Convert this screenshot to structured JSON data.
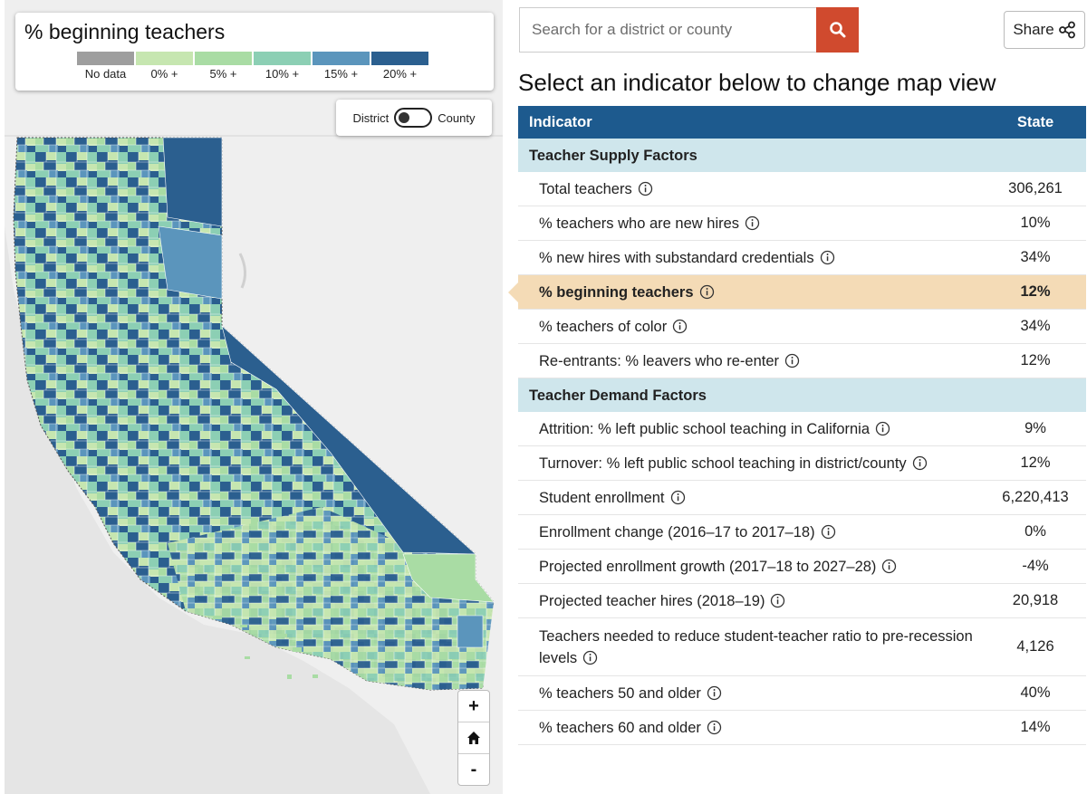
{
  "legend": {
    "title": "% beginning teachers",
    "items": [
      {
        "label": "No data",
        "color": "#9e9e9e"
      },
      {
        "label": "0% +",
        "color": "#c6e6b0"
      },
      {
        "label": "5% +",
        "color": "#a9dca4"
      },
      {
        "label": "10% +",
        "color": "#8ccfb4"
      },
      {
        "label": "15% +",
        "color": "#5b95bc"
      },
      {
        "label": "20% +",
        "color": "#2b5f8f"
      }
    ]
  },
  "toggle": {
    "left_label": "District",
    "right_label": "County",
    "selected": "District"
  },
  "zoom": {
    "zoom_in": "+",
    "home_icon": "home-icon",
    "zoom_out": "-"
  },
  "search": {
    "placeholder": "Search for a district or county",
    "button_icon": "search-icon"
  },
  "share": {
    "label": "Share",
    "icon": "share-icon"
  },
  "heading": "Select an indicator below to change map view",
  "table": {
    "col_indicator": "Indicator",
    "col_state": "State",
    "sections": [
      {
        "title": "Teacher Supply Factors",
        "rows": [
          {
            "name": "Total teachers",
            "value": "306,261"
          },
          {
            "name": "% teachers who are new hires",
            "value": "10%"
          },
          {
            "name": "% new hires with substandard credentials",
            "value": "34%"
          },
          {
            "name": "% beginning teachers",
            "value": "12%"
          },
          {
            "name": "% teachers of color",
            "value": "34%"
          },
          {
            "name": "Re-entrants: % leavers who re-enter",
            "value": "12%"
          }
        ]
      },
      {
        "title": "Teacher Demand Factors",
        "rows": [
          {
            "name": "Attrition: % left public school teaching in California",
            "value": "9%"
          },
          {
            "name": "Turnover: % left public school teaching in district/county",
            "value": "12%"
          },
          {
            "name": "Student enrollment",
            "value": "6,220,413"
          },
          {
            "name": "Enrollment change (2016–17 to 2017–18)",
            "value": "0%"
          },
          {
            "name": "Projected enrollment growth (2017–18 to 2027–28)",
            "value": "-4%"
          },
          {
            "name": "Projected teacher hires (2018–19)",
            "value": "20,918"
          },
          {
            "name": "Teachers needed to reduce student-teacher ratio to pre-recession levels",
            "value": "4,126"
          },
          {
            "name": "% teachers 50 and older",
            "value": "40%"
          },
          {
            "name": "% teachers 60 and older",
            "value": "14%"
          }
        ]
      }
    ],
    "active_row": "% beginning teachers",
    "active_color": "#f4dbb6",
    "header_color": "#1d5a8e",
    "section_color": "#cfe6ec"
  },
  "colors": {
    "search_button": "#d04a2e"
  }
}
